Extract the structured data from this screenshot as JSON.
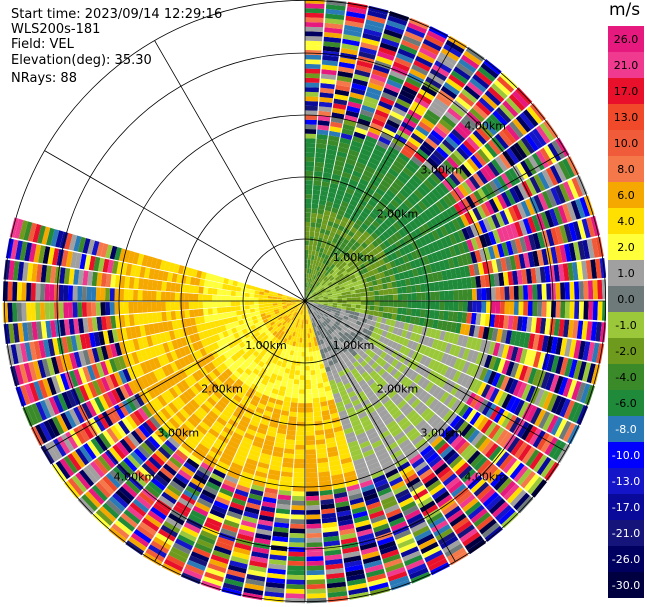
{
  "header": {
    "start_time": "Start time: 2023/09/14 12:29:16",
    "instrument": "WLS200s-181",
    "field": "Field: VEL",
    "elevation": "Elevation(deg): 35.30",
    "nrays": "NRays: 88"
  },
  "colorbar": {
    "unit": "m/s",
    "bins": [
      {
        "label": "26.0",
        "color": "#e6197f"
      },
      {
        "label": "21.0",
        "color": "#f03a90"
      },
      {
        "label": "17.0",
        "color": "#e8102a"
      },
      {
        "label": "13.0",
        "color": "#f04a2a"
      },
      {
        "label": "10.0",
        "color": "#f05c3a"
      },
      {
        "label": "8.0",
        "color": "#f5784a"
      },
      {
        "label": "6.0",
        "color": "#f5a800"
      },
      {
        "label": "4.0",
        "color": "#ffe000"
      },
      {
        "label": "2.0",
        "color": "#ffff3a"
      },
      {
        "label": "1.0",
        "color": "#a0a0a0"
      },
      {
        "label": "0.0",
        "color": "#6e7a7a"
      },
      {
        "label": "-1.0",
        "color": "#9bc83a"
      },
      {
        "label": "-2.0",
        "color": "#6e9a1e"
      },
      {
        "label": "-4.0",
        "color": "#3a8a2a"
      },
      {
        "label": "-6.0",
        "color": "#1e8a3a"
      },
      {
        "label": "-8.0",
        "color": "#2a7ab8"
      },
      {
        "label": "-10.0",
        "color": "#0000ff"
      },
      {
        "label": "-13.0",
        "color": "#1414c8"
      },
      {
        "label": "-17.0",
        "color": "#0a0a9a"
      },
      {
        "label": "-21.0",
        "color": "#14147a"
      },
      {
        "label": "-26.0",
        "color": "#000060"
      },
      {
        "label": "-30.0",
        "color": "#000040"
      }
    ]
  },
  "chart_data": {
    "type": "heatmap",
    "projection": "polar-ppi",
    "field": "VEL",
    "rings_km": [
      1,
      2,
      3,
      4
    ],
    "range_labels": [
      "1.00km",
      "2.00km",
      "3.00km",
      "4.00km"
    ]
  }
}
